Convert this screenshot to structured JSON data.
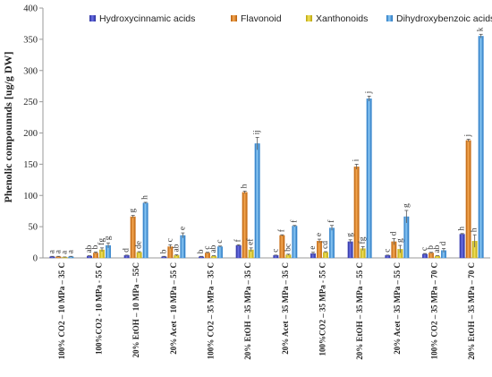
{
  "chart_data": {
    "type": "bar",
    "title": "",
    "ylabel": "Phenolic compounnds [ug/g DW]",
    "xlabel": "",
    "ylim": [
      0,
      400
    ],
    "yticks": [
      0,
      50,
      100,
      150,
      200,
      250,
      300,
      350,
      400
    ],
    "grid": false,
    "legend_position": "top-right",
    "categories": [
      "100% CO2 – 10 MPa – 35 C",
      "100%CO2 - 10 MPa - 55 C",
      "20% EtOH – 10 MPa – 55C",
      "20% Acet – 10 MPa – 55 C",
      "100% CO2 – 35 MPa – 35 C",
      "20% EtOH – 35 MPa – 35 C",
      "20% Acet – 35 MPa – 35 C",
      "100%CO2 – 35 MPa - 55 C",
      "20% EtOH – 35 MPa – 55 C",
      "20% Acet – 35 MPa – 55 C",
      "100% CO2 – 35 MPa – 70 C",
      "20% EtOH – 35 MPa – 70 C"
    ],
    "series": [
      {
        "name": "Hydroxycinnamic acids",
        "color": "#3a3fbf",
        "values": [
          2,
          3,
          4,
          2,
          2,
          20,
          4,
          7,
          26,
          4,
          6,
          38
        ],
        "errors": [
          0.5,
          0.5,
          0.5,
          0.5,
          0.5,
          1,
          0.5,
          2,
          3,
          0.5,
          1,
          1
        ],
        "labels": [
          "a",
          "ab",
          "d",
          "b",
          "b",
          "f",
          "c",
          "e",
          "g",
          "c",
          "c",
          "h"
        ]
      },
      {
        "name": "Flavonoid",
        "color": "#d97a1e",
        "values": [
          2,
          8,
          66,
          18,
          8,
          105,
          36,
          27,
          146,
          26,
          8,
          188
        ],
        "errors": [
          0.5,
          1.5,
          2,
          3,
          1,
          2,
          1,
          3,
          4,
          5,
          1,
          2
        ],
        "labels": [
          "a",
          "b",
          "g",
          "c",
          "c",
          "h",
          "f",
          "e",
          "i",
          "d",
          "b",
          "j"
        ]
      },
      {
        "name": "Xanthonoids",
        "color": "#d8c21e",
        "values": [
          1,
          13,
          9,
          4,
          3,
          13,
          5,
          9,
          15,
          14,
          3,
          27
        ],
        "errors": [
          0.5,
          3,
          1,
          1,
          0.5,
          3,
          1,
          1,
          3,
          6,
          0.5,
          10
        ],
        "labels": [
          "a",
          "fg",
          "de",
          "ab",
          "ab",
          "ef",
          "bc",
          "cd",
          "fg",
          "g",
          "ab",
          "h"
        ]
      },
      {
        "name": "Dihydroxybenzoic acids",
        "color": "#3b8fd9",
        "values": [
          2,
          20,
          88,
          36,
          18,
          183,
          51,
          48,
          255,
          66,
          12,
          355
        ],
        "errors": [
          0.5,
          4,
          1,
          4,
          1,
          10,
          1,
          4,
          4,
          10,
          3,
          3
        ],
        "labels": [
          "a",
          "g",
          "h",
          "e",
          "c",
          "ij",
          "f",
          "f",
          "j",
          "g",
          "d",
          "k"
        ]
      }
    ]
  }
}
